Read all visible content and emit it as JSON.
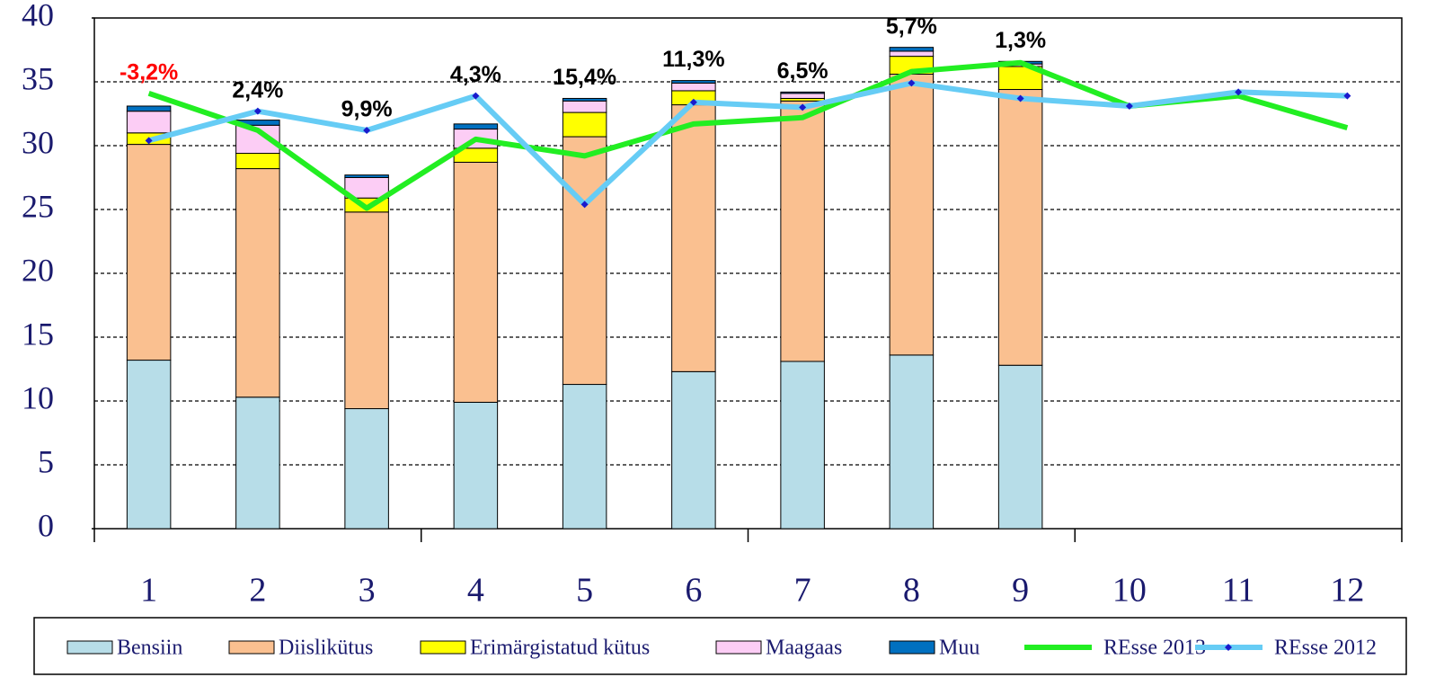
{
  "chart_data": {
    "type": "bar",
    "stacked": true,
    "categories": [
      "1",
      "2",
      "3",
      "4",
      "5",
      "6",
      "7",
      "8",
      "9",
      "10",
      "11",
      "12"
    ],
    "series": [
      {
        "name": "Bensiin",
        "type": "bar",
        "color": "#b7dde8",
        "values": [
          13.2,
          10.3,
          9.4,
          9.9,
          11.3,
          12.3,
          13.1,
          13.6,
          12.8,
          null,
          null,
          null
        ]
      },
      {
        "name": "Diislikütus",
        "type": "bar",
        "color": "#fac090",
        "values": [
          16.9,
          17.9,
          15.4,
          18.8,
          19.4,
          20.9,
          20.4,
          22.0,
          21.6,
          null,
          null,
          null
        ]
      },
      {
        "name": "Erimärgistatud kütus",
        "type": "bar",
        "color": "#ffff00",
        "values": [
          0.9,
          1.2,
          1.1,
          1.1,
          1.9,
          1.1,
          0.2,
          1.4,
          1.8,
          null,
          null,
          null
        ]
      },
      {
        "name": "Maagaas",
        "type": "bar",
        "color": "#fccdf5",
        "values": [
          1.7,
          2.2,
          1.6,
          1.5,
          0.9,
          0.6,
          0.4,
          0.4,
          0.2,
          null,
          null,
          null
        ]
      },
      {
        "name": "Muu",
        "type": "bar",
        "color": "#0070c0",
        "values": [
          0.4,
          0.4,
          0.2,
          0.4,
          0.2,
          0.2,
          0.1,
          0.3,
          0.2,
          null,
          null,
          null
        ]
      },
      {
        "name": "REsse 2013",
        "type": "line",
        "color": "#22ee22",
        "values": [
          34.1,
          31.2,
          25.1,
          30.5,
          29.2,
          31.7,
          32.2,
          35.8,
          36.5,
          33.1,
          33.9,
          31.4
        ]
      },
      {
        "name": "REsse 2012",
        "type": "line",
        "color": "#66ccf5",
        "marker_color": "#1a1acc",
        "values": [
          30.4,
          32.7,
          31.2,
          33.9,
          25.4,
          33.4,
          33.0,
          34.9,
          33.7,
          33.1,
          34.2,
          33.9
        ]
      }
    ],
    "annotations": [
      "-3,2%",
      "2,4%",
      "9,9%",
      "4,3%",
      "15,4%",
      "11,3%",
      "6,5%",
      "5,7%",
      "1,3%",
      null,
      null,
      null
    ],
    "annotation_colors": [
      "#ff0000",
      "#000000",
      "#000000",
      "#000000",
      "#000000",
      "#000000",
      "#000000",
      "#000000",
      "#000000",
      null,
      null,
      null
    ],
    "ylim": [
      0,
      40
    ],
    "yticks": [
      0,
      5,
      10,
      15,
      20,
      25,
      30,
      35,
      40
    ],
    "grid": true,
    "legend": "bottom"
  }
}
